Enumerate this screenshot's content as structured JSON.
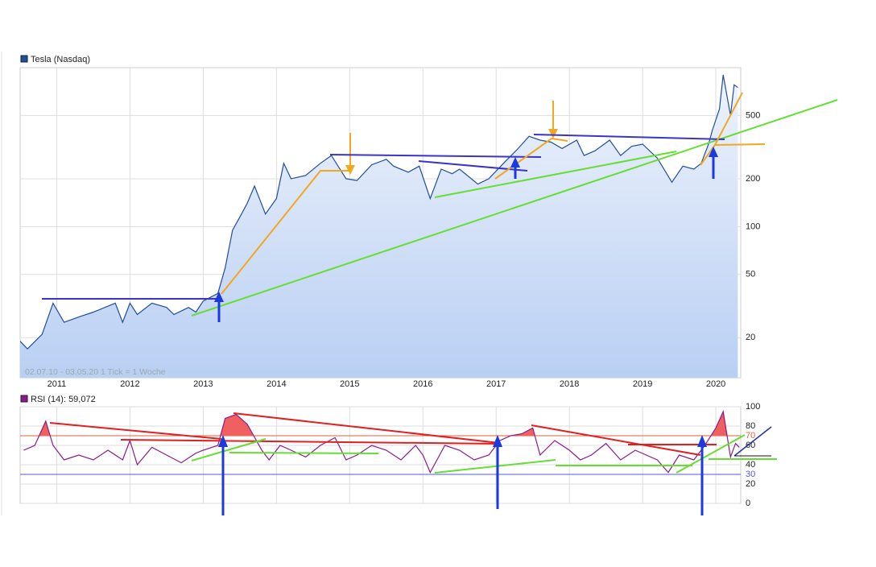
{
  "chart_data": [
    {
      "type": "line",
      "title": "Tesla (Nasdaq)",
      "footnote": "02.07.10 - 03.05.20   1 Tick = 1 Woche",
      "log": true,
      "grid": true,
      "color": "#1f4e9c",
      "legend": "top-left",
      "xlim": [
        2010.5,
        2020.34
      ],
      "xticks": [
        2011,
        2012,
        2013,
        2014,
        2015,
        2016,
        2017,
        2018,
        2019,
        2020
      ],
      "ylim": [
        11.2,
        1000
      ],
      "yticks": [
        20,
        50,
        100,
        200,
        500
      ],
      "x": [
        2010.5,
        2010.6,
        2010.8,
        2010.95,
        2011.1,
        2011.3,
        2011.5,
        2011.8,
        2011.9,
        2012.0,
        2012.1,
        2012.3,
        2012.5,
        2012.6,
        2012.8,
        2012.9,
        2013.0,
        2013.2,
        2013.3,
        2013.4,
        2013.5,
        2013.6,
        2013.7,
        2013.85,
        2014.0,
        2014.1,
        2014.2,
        2014.4,
        2014.6,
        2014.75,
        2014.95,
        2015.1,
        2015.3,
        2015.5,
        2015.6,
        2015.8,
        2015.95,
        2016.1,
        2016.25,
        2016.4,
        2016.5,
        2016.75,
        2016.9,
        2017.1,
        2017.3,
        2017.45,
        2017.6,
        2017.75,
        2017.9,
        2018.1,
        2018.2,
        2018.35,
        2018.55,
        2018.7,
        2018.85,
        2019.0,
        2019.2,
        2019.4,
        2019.55,
        2019.7,
        2019.8,
        2019.9,
        2019.95,
        2020.05,
        2020.1,
        2020.2,
        2020.25,
        2020.3
      ],
      "values": [
        19,
        17,
        21,
        33,
        25,
        27,
        29,
        33,
        25,
        33,
        28,
        33,
        31,
        28,
        31,
        29,
        34,
        38,
        55,
        95,
        115,
        140,
        180,
        120,
        150,
        250,
        200,
        210,
        250,
        280,
        200,
        195,
        245,
        265,
        240,
        220,
        240,
        150,
        230,
        215,
        230,
        185,
        200,
        250,
        310,
        370,
        350,
        340,
        310,
        350,
        280,
        300,
        350,
        280,
        320,
        330,
        270,
        190,
        240,
        230,
        250,
        330,
        400,
        550,
        900,
        500,
        780,
        750
      ]
    },
    {
      "type": "line",
      "title": "RSI (14): 59,072",
      "color": "#8b1a8b",
      "overbought_color": "#f06060",
      "grid": true,
      "xlim": [
        2010.5,
        2020.34
      ],
      "ylim": [
        0,
        100
      ],
      "yticks": [
        0,
        20,
        40,
        60,
        80,
        100
      ],
      "reference_lines": [
        {
          "value": 70,
          "color": "#e06040"
        },
        {
          "value": 30,
          "color": "#5555dd"
        }
      ],
      "x": [
        2010.55,
        2010.7,
        2010.85,
        2010.95,
        2011.1,
        2011.3,
        2011.5,
        2011.7,
        2011.9,
        2012.0,
        2012.1,
        2012.3,
        2012.5,
        2012.7,
        2012.9,
        2013.0,
        2013.2,
        2013.3,
        2013.45,
        2013.6,
        2013.8,
        2013.9,
        2014.05,
        2014.2,
        2014.4,
        2014.6,
        2014.8,
        2014.95,
        2015.1,
        2015.3,
        2015.5,
        2015.7,
        2015.9,
        2016.0,
        2016.1,
        2016.3,
        2016.5,
        2016.7,
        2016.9,
        2017.05,
        2017.2,
        2017.35,
        2017.5,
        2017.6,
        2017.8,
        2018.0,
        2018.15,
        2018.3,
        2018.5,
        2018.7,
        2018.9,
        2019.05,
        2019.2,
        2019.35,
        2019.5,
        2019.7,
        2019.85,
        2020.0,
        2020.1,
        2020.2,
        2020.27,
        2020.32
      ],
      "values": [
        55,
        60,
        85,
        60,
        45,
        50,
        45,
        55,
        45,
        65,
        40,
        58,
        50,
        42,
        52,
        55,
        60,
        88,
        92,
        82,
        55,
        45,
        60,
        55,
        48,
        60,
        68,
        45,
        50,
        60,
        55,
        45,
        60,
        50,
        32,
        60,
        55,
        45,
        50,
        65,
        70,
        72,
        78,
        50,
        65,
        55,
        45,
        50,
        62,
        45,
        55,
        50,
        45,
        32,
        50,
        45,
        60,
        78,
        95,
        48,
        62,
        58
      ]
    }
  ]
}
